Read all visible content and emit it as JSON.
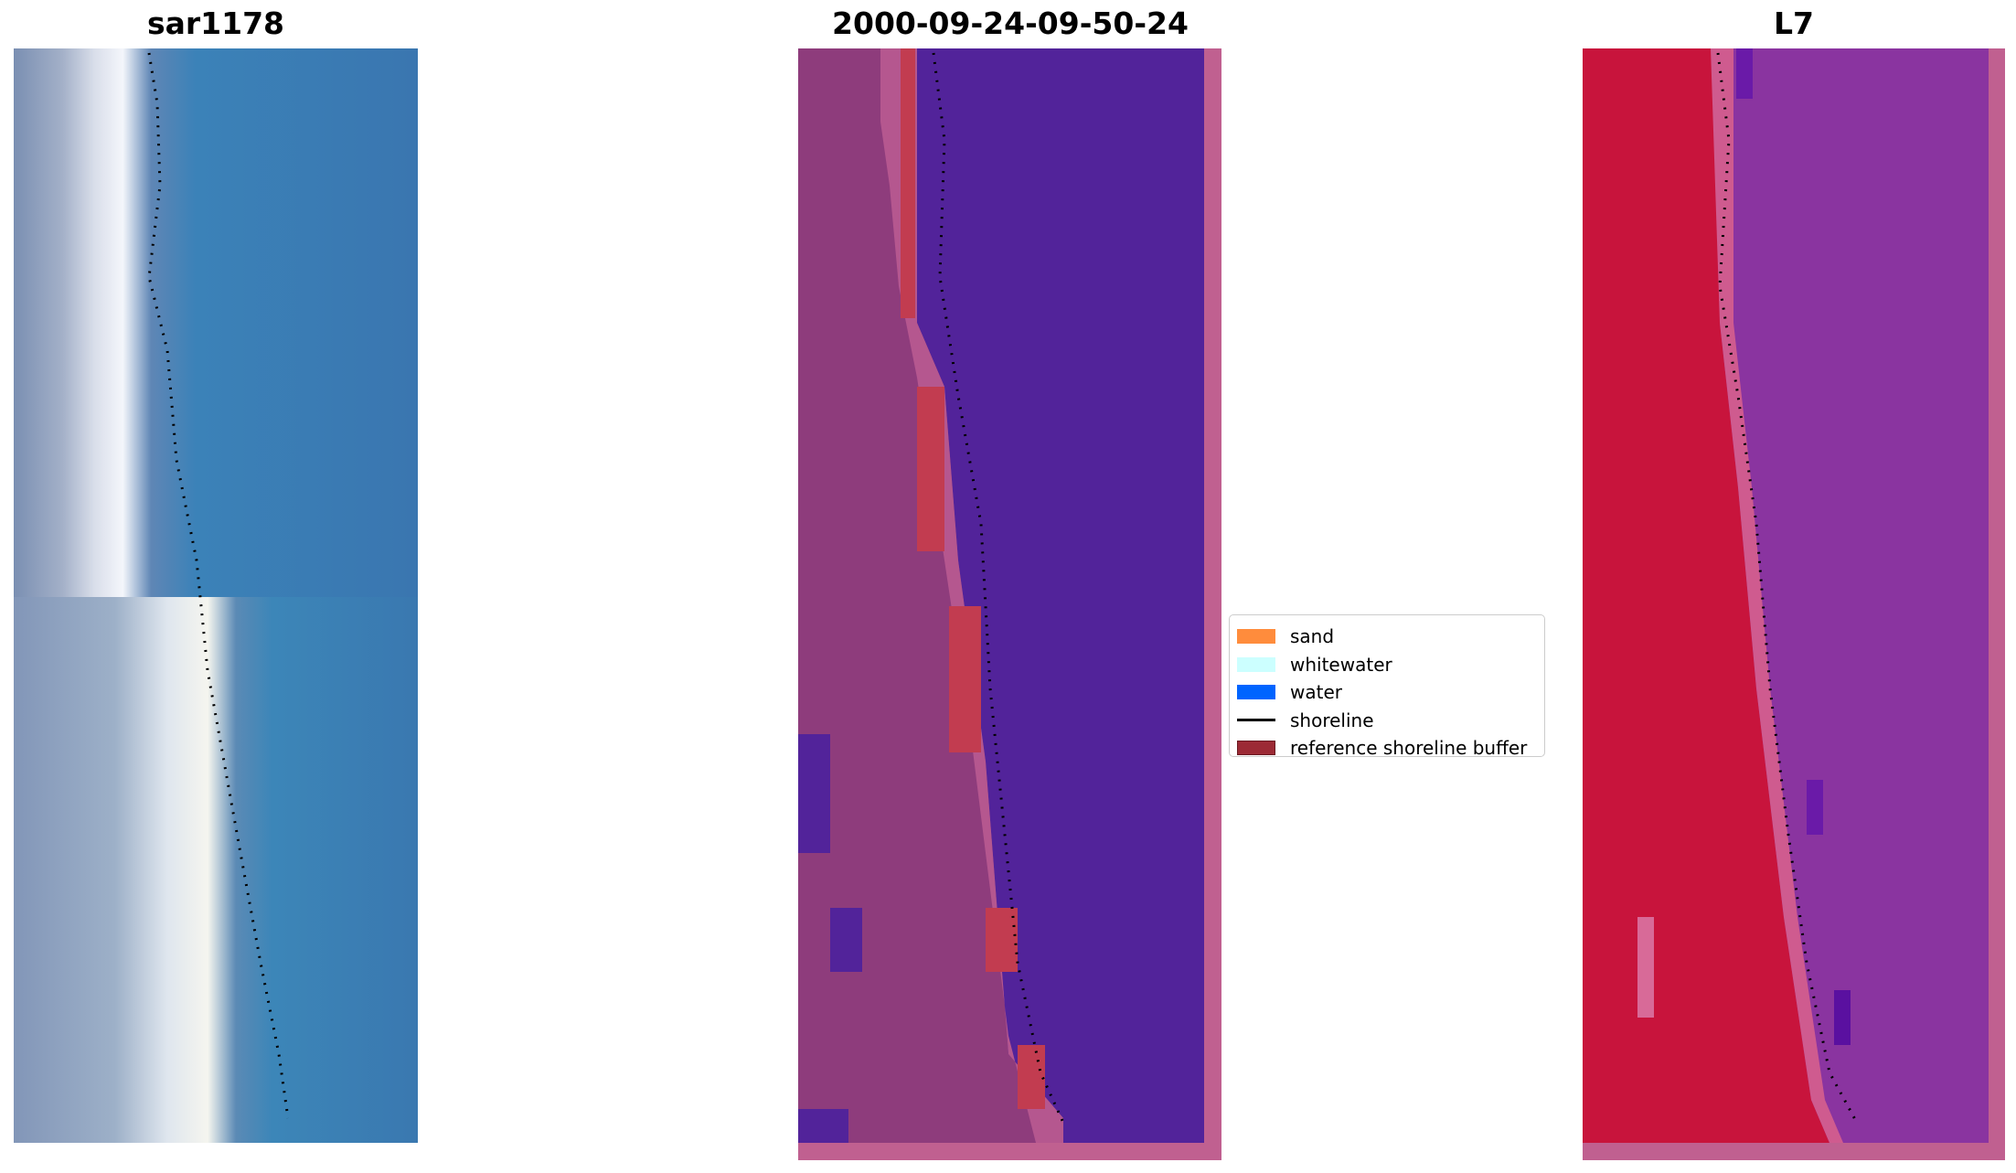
{
  "panels": [
    {
      "title": "sar1178"
    },
    {
      "title": "2000-09-24-09-50-24"
    },
    {
      "title": "L7"
    }
  ],
  "legend": {
    "items": [
      {
        "label": "sand",
        "color": "#ff8c3c",
        "kind": "patch"
      },
      {
        "label": "whitewater",
        "color": "#ccffff",
        "kind": "patch"
      },
      {
        "label": "water",
        "color": "#0064ff",
        "kind": "patch"
      },
      {
        "label": "shoreline",
        "color": "#000000",
        "kind": "line"
      },
      {
        "label": "reference shoreline buffer",
        "color": "#9c2a35",
        "kind": "patch"
      }
    ]
  },
  "colors": {
    "rgb_water": "#3a7ab8",
    "rgb_sand": "#e8eef6",
    "class_water": "#52239a",
    "class_land": "#8e3c7c",
    "class_buffer": "#c23c50",
    "class_border": "#c06090",
    "false_color_land": "#c8143c",
    "false_color_water": "#8a34a0"
  }
}
